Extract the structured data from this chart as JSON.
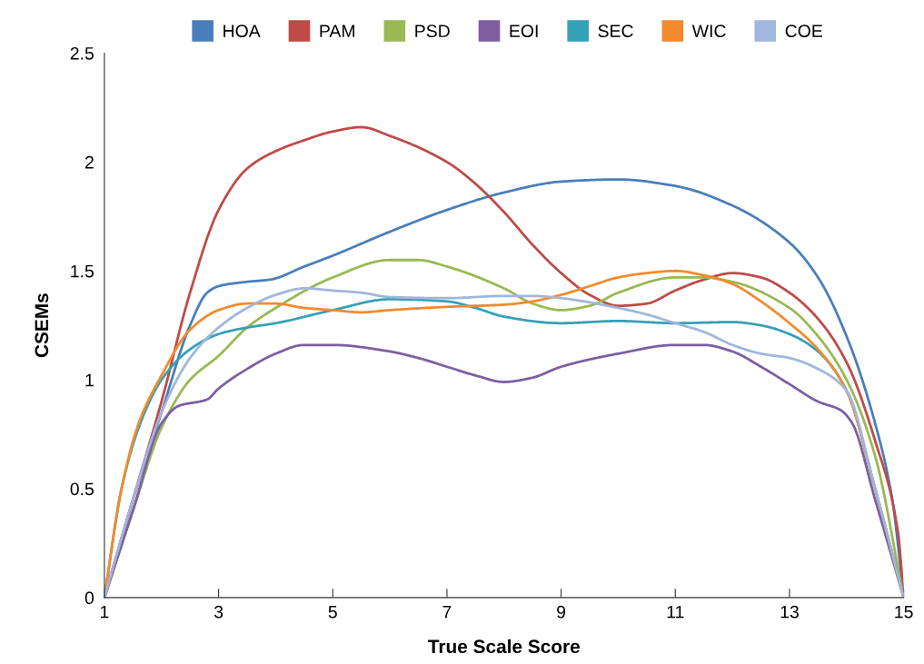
{
  "chart_data": {
    "type": "line",
    "xlabel": "True Scale Score",
    "ylabel": "CSEMs",
    "xlim": [
      1,
      15
    ],
    "ylim": [
      0,
      2.5
    ],
    "xticks": [
      1,
      3,
      5,
      7,
      9,
      11,
      13,
      15
    ],
    "yticks": [
      0,
      0.5,
      1,
      1.5,
      2,
      2.5
    ],
    "grid": false,
    "legend": "top",
    "marker": "none",
    "line_style": "solid",
    "series": [
      {
        "name": "HOA",
        "color": "#4a7ebb",
        "x": [
          1,
          1.5,
          2,
          2.5,
          2.8,
          3,
          3.5,
          3.9,
          4.5,
          5,
          6,
          7,
          8,
          9,
          10,
          11,
          12,
          13,
          13.5,
          14,
          14.5,
          14.8,
          15
        ],
        "values": [
          0,
          0.45,
          0.85,
          1.25,
          1.4,
          1.43,
          1.45,
          1.46,
          1.52,
          1.57,
          1.68,
          1.78,
          1.86,
          1.91,
          1.92,
          1.89,
          1.8,
          1.63,
          1.47,
          1.2,
          0.8,
          0.45,
          0
        ]
      },
      {
        "name": "PAM",
        "color": "#be4b48",
        "x": [
          1,
          1.5,
          2,
          2.5,
          3,
          3.5,
          4,
          4.5,
          5,
          5.5,
          6,
          7,
          7.5,
          8,
          8.5,
          9,
          9.5,
          10,
          10.5,
          11,
          11.5,
          12,
          12.5,
          13,
          13.5,
          14,
          14.5,
          14.9,
          15
        ],
        "values": [
          0,
          0.45,
          0.9,
          1.4,
          1.78,
          1.97,
          2.05,
          2.1,
          2.14,
          2.16,
          2.12,
          2.0,
          1.9,
          1.77,
          1.62,
          1.49,
          1.39,
          1.34,
          1.35,
          1.41,
          1.46,
          1.49,
          1.47,
          1.4,
          1.28,
          1.08,
          0.72,
          0.3,
          0
        ]
      },
      {
        "name": "PSD",
        "color": "#98b954",
        "x": [
          1,
          1.5,
          2,
          2.5,
          3,
          3.5,
          4,
          5,
          6,
          6.5,
          7,
          8,
          8.5,
          9,
          9.5,
          10,
          11,
          11.5,
          12,
          13,
          13.5,
          14,
          14.5,
          15
        ],
        "values": [
          0,
          0.4,
          0.78,
          1.0,
          1.11,
          1.24,
          1.33,
          1.47,
          1.55,
          1.55,
          1.52,
          1.42,
          1.35,
          1.32,
          1.34,
          1.4,
          1.47,
          1.47,
          1.45,
          1.33,
          1.2,
          1.0,
          0.65,
          0
        ]
      },
      {
        "name": "EOI",
        "color": "#7d5fa0",
        "x": [
          1,
          1.5,
          2,
          2.3,
          2.8,
          3,
          3.5,
          4,
          4.5,
          5,
          6,
          6.5,
          7,
          7.5,
          8,
          8.5,
          9,
          10,
          11,
          11.5,
          12,
          12.5,
          13,
          13.5,
          13.9,
          14.1,
          14.5,
          15
        ],
        "values": [
          0,
          0.4,
          0.8,
          0.88,
          0.91,
          0.96,
          1.05,
          1.12,
          1.16,
          1.16,
          1.13,
          1.1,
          1.06,
          1.02,
          0.99,
          1.01,
          1.06,
          1.12,
          1.16,
          1.16,
          1.13,
          1.06,
          0.98,
          0.9,
          0.86,
          0.8,
          0.45,
          0
        ]
      },
      {
        "name": "SEC",
        "color": "#35a1b6",
        "x": [
          1,
          1.3,
          1.6,
          2,
          2.5,
          3,
          3.5,
          4,
          5,
          6,
          7,
          7.5,
          8,
          9,
          10,
          11,
          12,
          12.5,
          13,
          13.5,
          14,
          14.5,
          15
        ],
        "values": [
          0,
          0.5,
          0.78,
          1.0,
          1.14,
          1.21,
          1.24,
          1.26,
          1.32,
          1.37,
          1.36,
          1.33,
          1.29,
          1.26,
          1.27,
          1.26,
          1.265,
          1.25,
          1.21,
          1.13,
          0.95,
          0.5,
          0
        ]
      },
      {
        "name": "WIC",
        "color": "#f38a2e",
        "x": [
          1,
          1.3,
          1.6,
          2,
          2.5,
          3,
          3.5,
          4,
          4.5,
          5,
          5.5,
          6,
          7,
          8,
          8.5,
          9,
          9.5,
          10,
          10.5,
          11,
          11.5,
          12,
          12.5,
          13,
          13.5,
          14,
          14.5,
          15
        ],
        "values": [
          0,
          0.5,
          0.8,
          1.02,
          1.23,
          1.32,
          1.35,
          1.35,
          1.33,
          1.32,
          1.31,
          1.32,
          1.335,
          1.345,
          1.36,
          1.39,
          1.43,
          1.47,
          1.49,
          1.5,
          1.48,
          1.44,
          1.36,
          1.26,
          1.14,
          0.95,
          0.5,
          0
        ]
      },
      {
        "name": "COE",
        "color": "#a0b6dc",
        "x": [
          1,
          1.5,
          2,
          2.5,
          3,
          3.5,
          4,
          4.5,
          5,
          5.5,
          6,
          7,
          8,
          8.5,
          9,
          10,
          10.5,
          11,
          11.5,
          12,
          12.5,
          13,
          13.5,
          14,
          14.5,
          15
        ],
        "values": [
          0,
          0.45,
          0.85,
          1.1,
          1.24,
          1.33,
          1.39,
          1.42,
          1.41,
          1.4,
          1.38,
          1.375,
          1.385,
          1.385,
          1.375,
          1.33,
          1.3,
          1.26,
          1.22,
          1.16,
          1.12,
          1.1,
          1.05,
          0.95,
          0.5,
          0
        ]
      }
    ]
  }
}
